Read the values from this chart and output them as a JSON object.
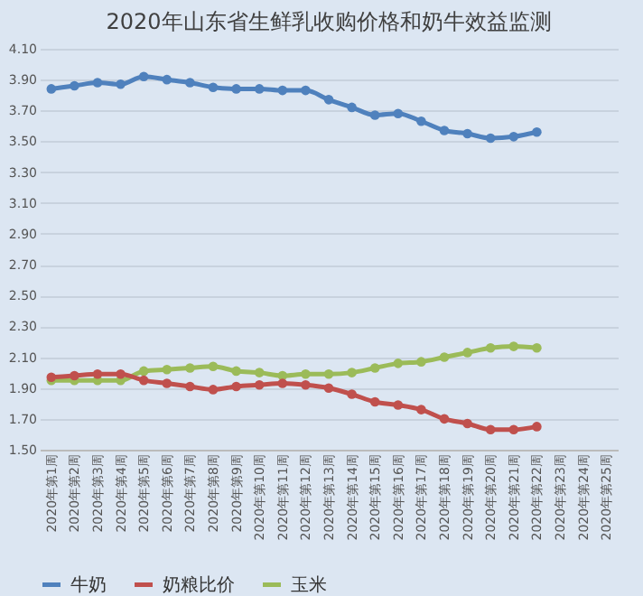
{
  "chart_data": {
    "type": "line",
    "title": "2020年山东省生鲜乳收购价格和奶牛效益监测",
    "categories": [
      "2020年第1周",
      "2020年第2周",
      "2020年第3周",
      "2020年第4周",
      "2020年第5周",
      "2020年第6周",
      "2020年第7周",
      "2020年第8周",
      "2020年第9周",
      "2020年第10周",
      "2020年第11周",
      "2020年第12周",
      "2020年第13周",
      "2020年第14周",
      "2020年第15周",
      "2020年第16周",
      "2020年第17周",
      "2020年第18周",
      "2020年第19周",
      "2020年第20周",
      "2020年第21周",
      "2020年第22周",
      "2020年第23周",
      "2020年第24周",
      "2020年第25周"
    ],
    "series": [
      {
        "name": "牛奶",
        "color": "#4f81bd",
        "values": [
          3.84,
          3.86,
          3.88,
          3.87,
          3.92,
          3.9,
          3.88,
          3.85,
          3.84,
          3.84,
          3.83,
          3.83,
          3.77,
          3.72,
          3.67,
          3.68,
          3.63,
          3.57,
          3.55,
          3.52,
          3.53,
          3.56,
          null,
          null,
          null
        ]
      },
      {
        "name": "奶粮比价",
        "color": "#c0504d",
        "values": [
          1.97,
          1.98,
          1.99,
          1.99,
          1.95,
          1.93,
          1.91,
          1.89,
          1.91,
          1.92,
          1.93,
          1.92,
          1.9,
          1.86,
          1.81,
          1.79,
          1.76,
          1.7,
          1.67,
          1.63,
          1.63,
          1.65,
          null,
          null,
          null
        ]
      },
      {
        "name": "玉米",
        "color": "#9bbb59",
        "values": [
          1.95,
          1.95,
          1.95,
          1.95,
          2.01,
          2.02,
          2.03,
          2.04,
          2.01,
          2.0,
          1.98,
          1.99,
          1.99,
          2.0,
          2.03,
          2.06,
          2.07,
          2.1,
          2.13,
          2.16,
          2.17,
          2.16,
          null,
          null,
          null
        ]
      }
    ],
    "ylim": [
      1.5,
      4.1
    ],
    "yticks": [
      {
        "value": 1.5,
        "label": "1.50"
      },
      {
        "value": 1.7,
        "label": "1.70"
      },
      {
        "value": 1.9,
        "label": "1.90"
      },
      {
        "value": 2.1,
        "label": "2.10"
      },
      {
        "value": 2.3,
        "label": "2.30"
      },
      {
        "value": 2.5,
        "label": "2.50"
      },
      {
        "value": 2.7,
        "label": "2.70"
      },
      {
        "value": 2.9,
        "label": "2.90"
      },
      {
        "value": 3.1,
        "label": "3.10"
      },
      {
        "value": 3.3,
        "label": "3.30"
      },
      {
        "value": 3.5,
        "label": "3.50"
      },
      {
        "value": 3.7,
        "label": "3.70"
      },
      {
        "value": 3.9,
        "label": "3.90"
      },
      {
        "value": 4.1,
        "label": "4.10"
      }
    ],
    "grid": "y",
    "legend": "bottom",
    "marker": "circle",
    "line_style": "solid"
  }
}
